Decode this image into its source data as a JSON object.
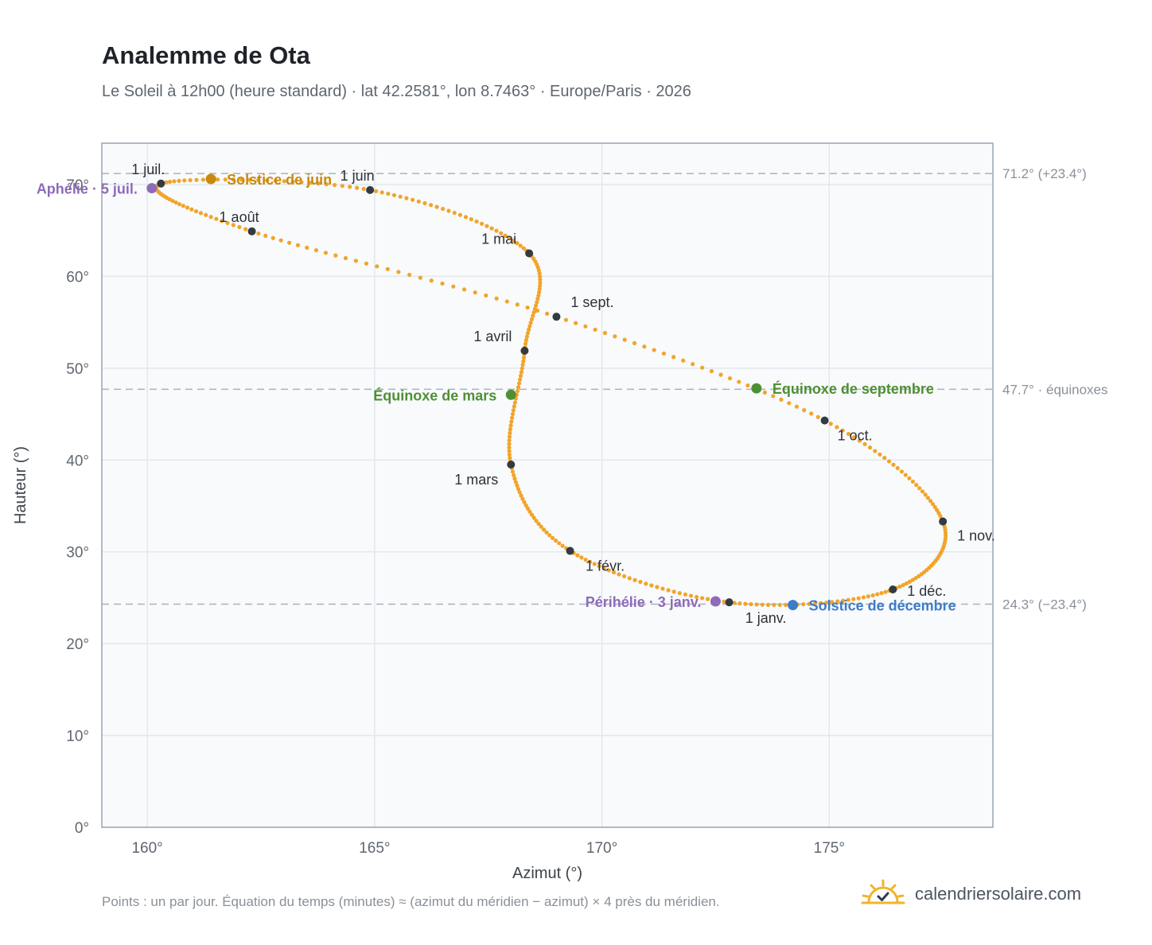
{
  "title": "Analemme de Ota",
  "subtitle": "Le Soleil à 12h00 (heure standard) · lat 42.2581°, lon 8.7463° · Europe/Paris · 2026",
  "footnote": "Points : un par jour. Équation du temps (minutes) ≈ (azimut du méridien − azimut) × 4 près du méridien.",
  "brand": {
    "name": "calendriersolaire.com",
    "icon": "sun-check-icon"
  },
  "chart_data": {
    "type": "scatter",
    "xlabel": "Azimut (°)",
    "ylabel": "Hauteur (°)",
    "xlim": [
      159,
      178.6
    ],
    "ylim": [
      0,
      74.5
    ],
    "xticks": [
      {
        "value": 160,
        "label": "160°"
      },
      {
        "value": 165,
        "label": "165°"
      },
      {
        "value": 170,
        "label": "170°"
      },
      {
        "value": 175,
        "label": "175°"
      }
    ],
    "yticks": [
      {
        "value": 0,
        "label": "0°"
      },
      {
        "value": 10,
        "label": "10°"
      },
      {
        "value": 20,
        "label": "20°"
      },
      {
        "value": 30,
        "label": "30°"
      },
      {
        "value": 40,
        "label": "40°"
      },
      {
        "value": 50,
        "label": "50°"
      },
      {
        "value": 60,
        "label": "60°"
      },
      {
        "value": 70,
        "label": "70°"
      }
    ],
    "grid": true,
    "reference_lines": [
      {
        "y": 71.2,
        "label": "71.2° (+23.4°)"
      },
      {
        "y": 47.7,
        "label": "47.7° · équinoxes"
      },
      {
        "y": 24.3,
        "label": "24.3° (−23.4°)"
      }
    ],
    "months": [
      {
        "label": "1 janv.",
        "x": 172.8,
        "y": 24.5
      },
      {
        "label": "1 févr.",
        "x": 169.3,
        "y": 30.1
      },
      {
        "label": "1 mars",
        "x": 168.0,
        "y": 39.5
      },
      {
        "label": "1 avril",
        "x": 168.3,
        "y": 51.9
      },
      {
        "label": "1 mai",
        "x": 168.4,
        "y": 62.5
      },
      {
        "label": "1 juin",
        "x": 164.9,
        "y": 69.4
      },
      {
        "label": "1 juil.",
        "x": 160.3,
        "y": 70.1
      },
      {
        "label": "1 août",
        "x": 162.3,
        "y": 64.9
      },
      {
        "label": "1 sept.",
        "x": 169.0,
        "y": 55.6
      },
      {
        "label": "1 oct.",
        "x": 174.9,
        "y": 44.3
      },
      {
        "label": "1 nov.",
        "x": 177.5,
        "y": 33.3
      },
      {
        "label": "1 déc.",
        "x": 176.4,
        "y": 25.9
      }
    ],
    "events": [
      {
        "label": "Périhélie · 3 janv.",
        "x": 172.5,
        "y": 24.6,
        "color": "#8e6bb8"
      },
      {
        "label": "Équinoxe de mars",
        "x": 168.0,
        "y": 47.1,
        "color": "#4f8f34"
      },
      {
        "label": "Solstice de juin",
        "x": 161.4,
        "y": 70.6,
        "color": "#c98a0c"
      },
      {
        "label": "Aphélie · 5 juil.",
        "x": 160.1,
        "y": 69.6,
        "color": "#8e6bb8"
      },
      {
        "label": "Équinoxe de septembre",
        "x": 173.4,
        "y": 47.8,
        "color": "#4f8f34"
      },
      {
        "label": "Solstice de décembre",
        "x": 174.2,
        "y": 24.2,
        "color": "#3d7cc9"
      }
    ],
    "colors": {
      "curve": "#f2a42a",
      "month_marker": "#333a41",
      "reference": "#aab3bb",
      "plot_bg": "#f8fafc",
      "grid": "#e3e8ee",
      "frame": "#9aa4b0"
    }
  }
}
